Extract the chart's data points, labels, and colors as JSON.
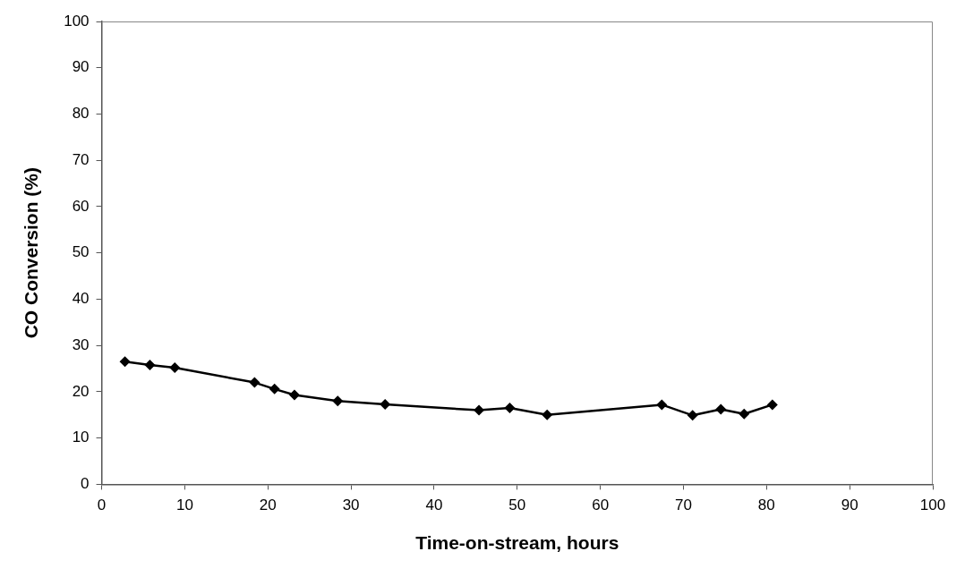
{
  "chart_data": {
    "type": "line",
    "xlabel": "Time-on-stream, hours",
    "ylabel": "CO Conversion (%)",
    "x": [
      2.8,
      5.8,
      8.8,
      18.4,
      20.8,
      23.2,
      28.4,
      34.1,
      45.4,
      49.1,
      53.6,
      67.4,
      71.1,
      74.5,
      77.3,
      80.7
    ],
    "series": [
      {
        "color": "#000000",
        "values": [
          26.5,
          25.8,
          25.2,
          22,
          20.6,
          19.3,
          18,
          17.3,
          16,
          16.5,
          15,
          17.2,
          14.9,
          16.2,
          15.2,
          17.2
        ]
      }
    ],
    "xlim": [
      0,
      100
    ],
    "xticks": [
      0,
      10,
      20,
      30,
      40,
      50,
      60,
      70,
      80,
      90,
      100
    ],
    "ylim": [
      0,
      100
    ],
    "yticks": [
      0,
      10,
      20,
      30,
      40,
      50,
      60,
      70,
      80,
      90,
      100
    ],
    "grid": false,
    "legend": false,
    "marker": "diamond",
    "line_style": "solid"
  }
}
